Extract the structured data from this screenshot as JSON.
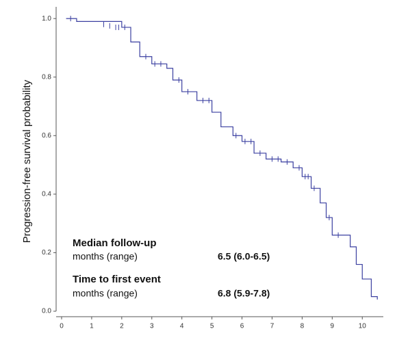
{
  "chart_data": {
    "type": "step",
    "ylabel": "Progression-free survival probability",
    "xlim": [
      0,
      10.7
    ],
    "ylim": [
      0,
      1.04
    ],
    "xticks": [
      0,
      1,
      2,
      3,
      4,
      5,
      6,
      7,
      8,
      9,
      10
    ],
    "yticks": [
      {
        "value": 0,
        "label": "0.0"
      },
      {
        "value": 0.2,
        "label": "0.2"
      },
      {
        "value": 0.4,
        "label": "0.4"
      },
      {
        "value": 0.6,
        "label": "0.6"
      },
      {
        "value": 0.8,
        "label": "0.8"
      },
      {
        "value": 1,
        "label": "1.0"
      }
    ],
    "series": [
      {
        "color": "#3a3fa0",
        "x": [
          0.15,
          0.5,
          2.0,
          2.3,
          2.6,
          3.0,
          3.5,
          3.7,
          4.0,
          4.5,
          5.0,
          5.3,
          5.7,
          6.0,
          6.4,
          6.8,
          7.3,
          7.7,
          8.0,
          8.3,
          8.6,
          8.8,
          9.0,
          9.6,
          9.8,
          10.0,
          10.3,
          10.5
        ],
        "values": [
          1.0,
          0.99,
          0.97,
          0.92,
          0.87,
          0.845,
          0.83,
          0.79,
          0.75,
          0.72,
          0.68,
          0.63,
          0.6,
          0.58,
          0.54,
          0.52,
          0.51,
          0.49,
          0.46,
          0.42,
          0.37,
          0.32,
          0.26,
          0.22,
          0.16,
          0.11,
          0.05,
          0.04
        ]
      }
    ],
    "censored": {
      "x": [
        0.3,
        1.4,
        1.6,
        1.8,
        1.9,
        2.1,
        2.8,
        3.1,
        3.3,
        3.9,
        4.2,
        4.7,
        4.9,
        5.8,
        6.1,
        6.3,
        6.6,
        7.0,
        7.2,
        7.5,
        7.9,
        8.1,
        8.2,
        8.4,
        8.9,
        9.2
      ],
      "y": [
        1.0,
        0.98,
        0.975,
        0.97,
        0.97,
        0.97,
        0.87,
        0.845,
        0.845,
        0.79,
        0.75,
        0.72,
        0.72,
        0.6,
        0.58,
        0.58,
        0.54,
        0.52,
        0.52,
        0.51,
        0.49,
        0.46,
        0.46,
        0.42,
        0.32,
        0.26
      ]
    },
    "annotations": [
      {
        "label": "Median follow-up",
        "sublabel": "months (range)",
        "value": "6.5 (6.0-6.5)"
      },
      {
        "label": "Time to first event",
        "sublabel": "months (range)",
        "value": "6.8 (5.9-7.8)"
      }
    ]
  }
}
